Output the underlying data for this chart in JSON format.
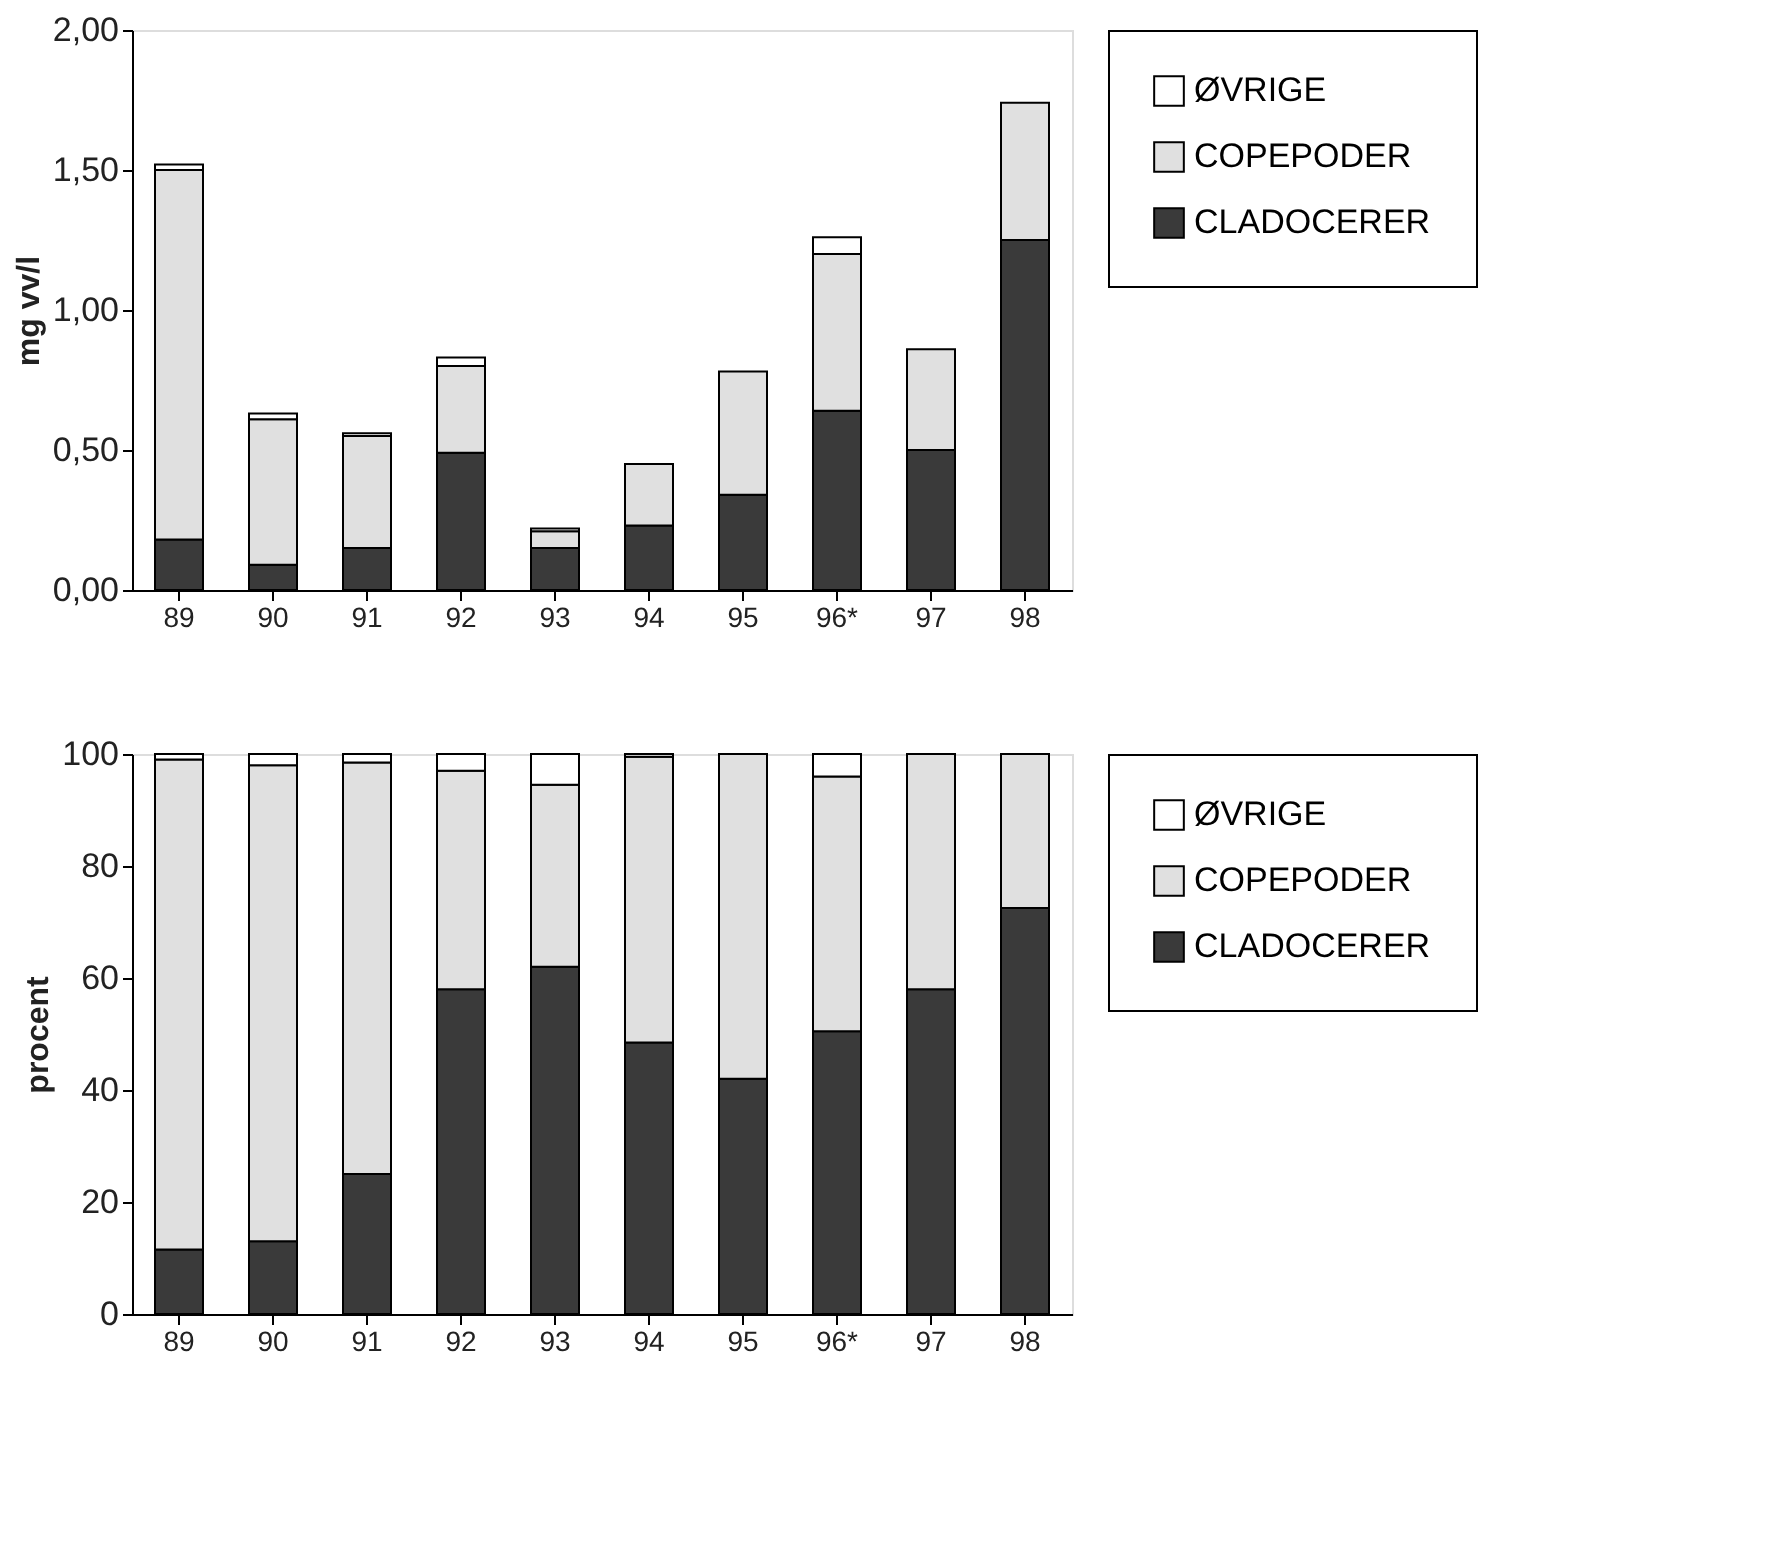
{
  "chart_data": [
    {
      "type": "bar",
      "stacked": true,
      "ylabel": "mg vv/l",
      "categories": [
        "89",
        "90",
        "91",
        "92",
        "93",
        "94",
        "95",
        "96*",
        "97",
        "98"
      ],
      "series": [
        {
          "name": "CLADOCERER",
          "color": "#3a3a3a",
          "values": [
            0.18,
            0.09,
            0.15,
            0.49,
            0.15,
            0.23,
            0.34,
            0.64,
            0.5,
            1.25
          ]
        },
        {
          "name": "COPEPODER",
          "color": "#e0e0e0",
          "values": [
            1.32,
            0.52,
            0.4,
            0.31,
            0.06,
            0.22,
            0.44,
            0.56,
            0.36,
            0.49
          ]
        },
        {
          "name": "ØVRIGE",
          "color": "#ffffff",
          "values": [
            0.02,
            0.02,
            0.01,
            0.03,
            0.01,
            null,
            null,
            0.06,
            null,
            null
          ]
        }
      ],
      "ylim": [
        0,
        2
      ],
      "yticks": [
        {
          "value": 0,
          "label": "0,00"
        },
        {
          "value": 0.5,
          "label": "0,50"
        },
        {
          "value": 1,
          "label": "1,00"
        },
        {
          "value": 1.5,
          "label": "1,50"
        },
        {
          "value": 2,
          "label": "2,00"
        }
      ],
      "grid": false,
      "legend": "top right"
    },
    {
      "type": "bar",
      "stacked": true,
      "ylabel": "procent",
      "categories": [
        "89",
        "90",
        "91",
        "92",
        "93",
        "94",
        "95",
        "96*",
        "97",
        "98"
      ],
      "series": [
        {
          "name": "CLADOCERER",
          "color": "#3a3a3a",
          "values": [
            11.5,
            13,
            25,
            58,
            62,
            48.5,
            42,
            50.5,
            58,
            72.5
          ]
        },
        {
          "name": "COPEPODER",
          "color": "#e0e0e0",
          "values": [
            87.5,
            85,
            73.5,
            39,
            32.5,
            51,
            58,
            45.5,
            42,
            27.5
          ]
        },
        {
          "name": "ØVRIGE",
          "color": "#ffffff",
          "values": [
            1,
            2,
            1.5,
            3,
            5.5,
            0.5,
            null,
            4,
            null,
            null
          ]
        }
      ],
      "ylim": [
        0,
        100
      ],
      "yticks": [
        0,
        20,
        40,
        60,
        80,
        100
      ],
      "grid": false,
      "legend": "top right"
    }
  ]
}
